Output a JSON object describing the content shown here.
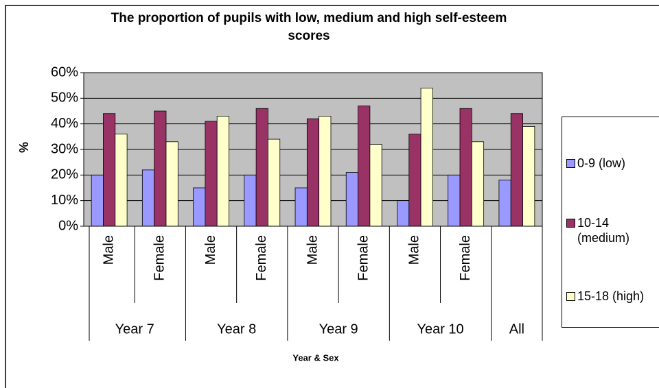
{
  "chart_data": {
    "type": "bar",
    "title": "The proportion of pupils with low, medium and high self-esteem scores",
    "x_label": "Year & Sex",
    "y_label": "%",
    "groups": [
      {
        "name": "Year 7",
        "categories": [
          "Male",
          "Female"
        ]
      },
      {
        "name": "Year 8",
        "categories": [
          "Male",
          "Female"
        ]
      },
      {
        "name": "Year 9",
        "categories": [
          "Male",
          "Female"
        ]
      },
      {
        "name": "Year 10",
        "categories": [
          "Male",
          "Female"
        ]
      },
      {
        "name": "All",
        "categories": [
          null
        ]
      }
    ],
    "series": [
      {
        "name": "0-9 (low)",
        "color": "#9999ff",
        "values": [
          20,
          22,
          15,
          20,
          15,
          21,
          10,
          20,
          18
        ]
      },
      {
        "name": "10-14 (medium)",
        "color": "#993366",
        "values": [
          44,
          45,
          41,
          46,
          42,
          47,
          36,
          46,
          44
        ]
      },
      {
        "name": "15-18 (high)",
        "color": "#ffffcc",
        "values": [
          36,
          33,
          43,
          34,
          43,
          32,
          54,
          33,
          39
        ]
      }
    ],
    "ylim": [
      0,
      60
    ],
    "yticks": [
      {
        "value": 0,
        "label": "0%"
      },
      {
        "value": 10,
        "label": "10%"
      },
      {
        "value": 20,
        "label": "20%"
      },
      {
        "value": 30,
        "label": "30%"
      },
      {
        "value": 40,
        "label": "40%"
      },
      {
        "value": 50,
        "label": "50%"
      },
      {
        "value": 60,
        "label": "60%"
      }
    ],
    "grid": true,
    "plot_background": "#c0c0c0",
    "legend": "right"
  }
}
